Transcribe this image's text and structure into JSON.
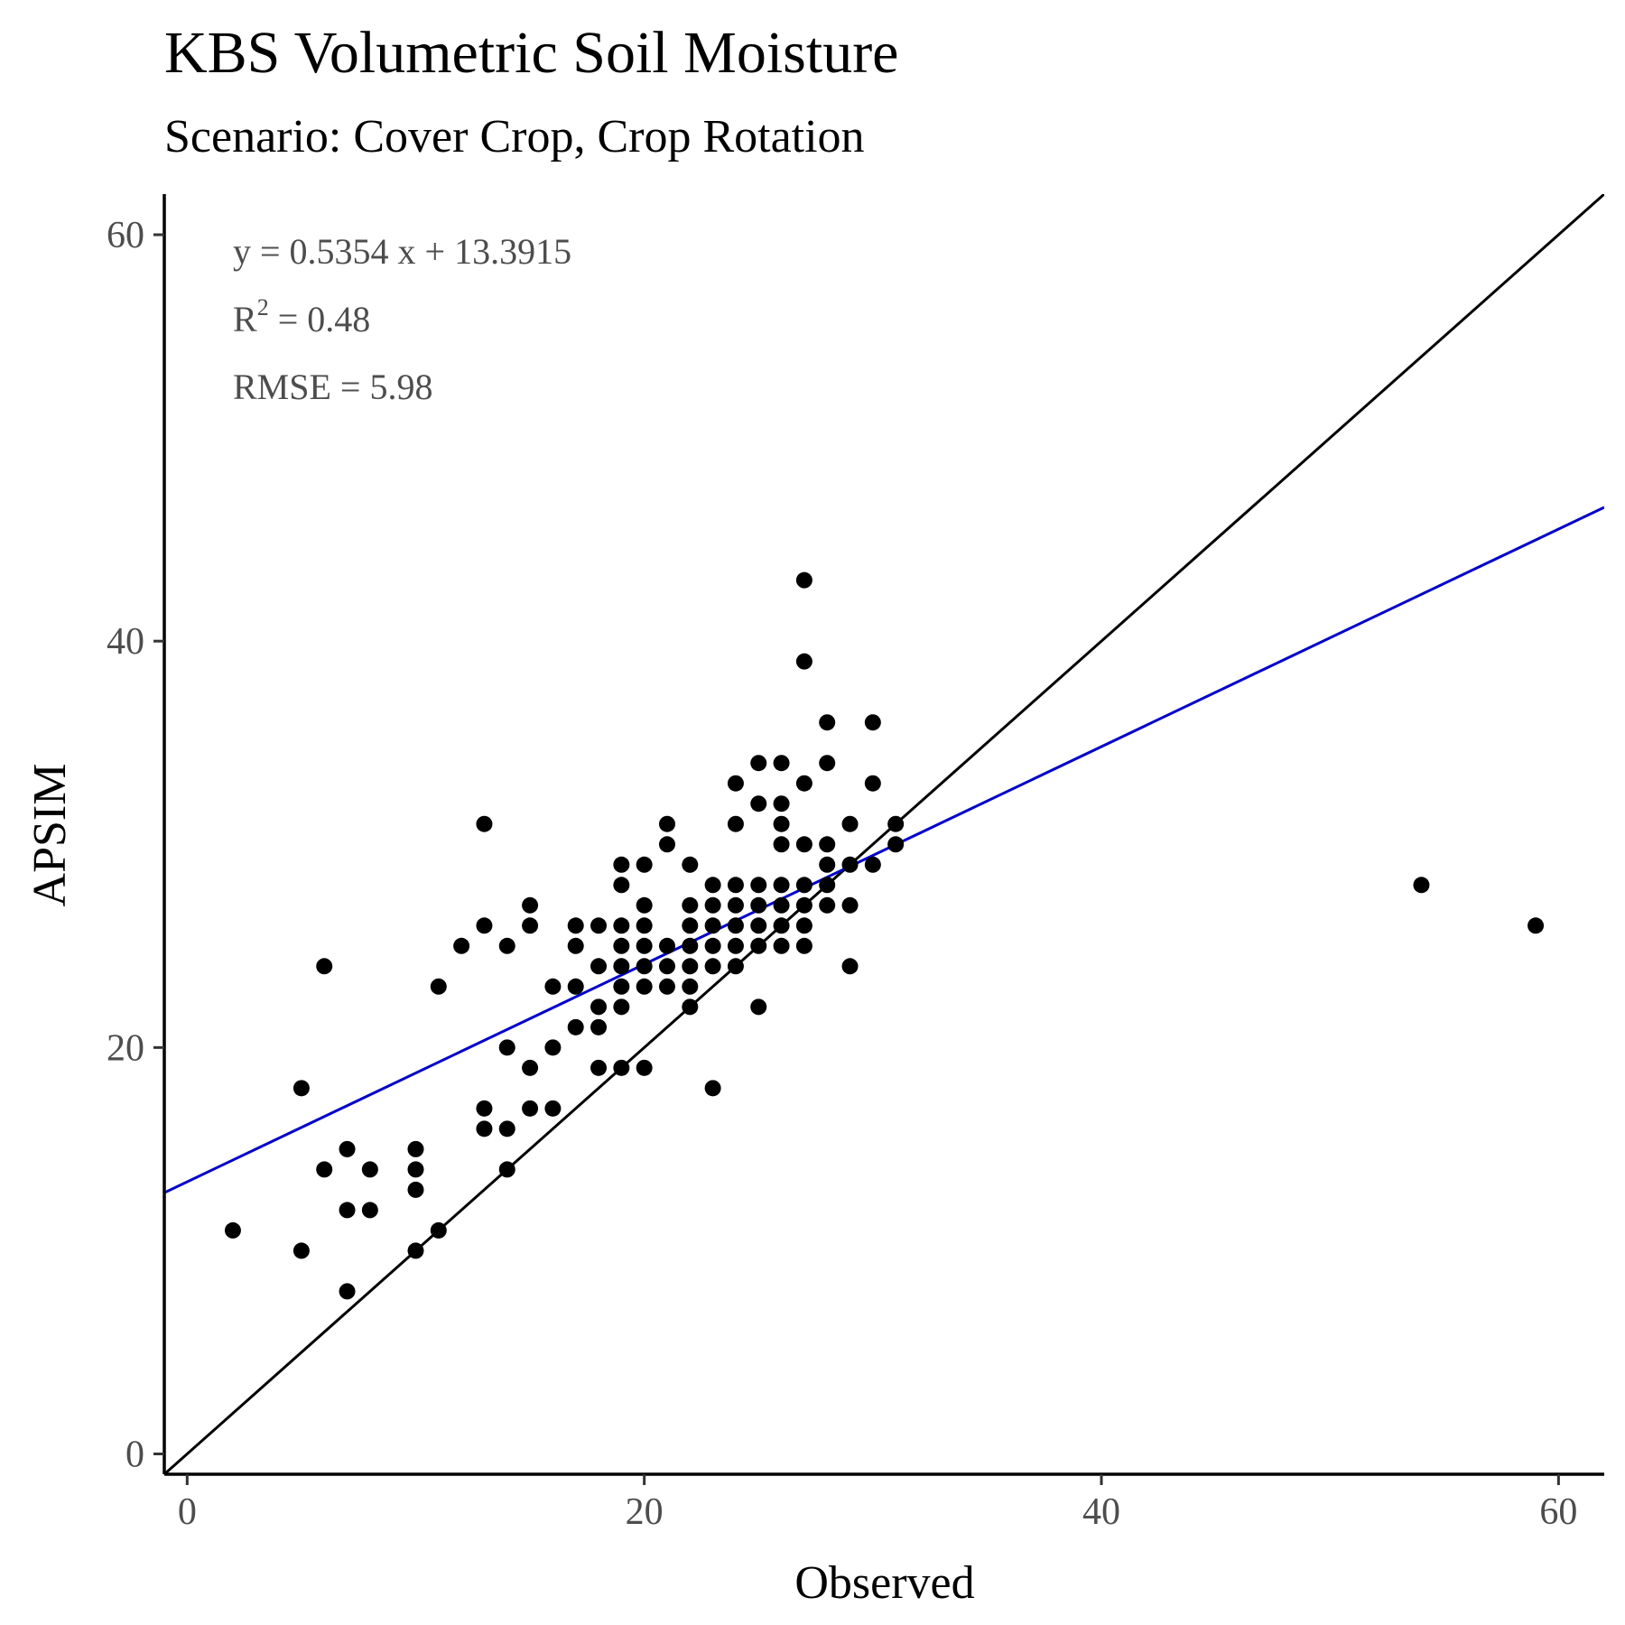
{
  "chart_data": {
    "type": "scatter",
    "title": "KBS Volumetric Soil Moisture",
    "subtitle": "Scenario: Cover Crop, Crop Rotation",
    "xlabel": "Observed",
    "ylabel": "APSIM",
    "xlim": [
      -1,
      62
    ],
    "ylim": [
      -1,
      62
    ],
    "xticks": [
      0,
      20,
      40,
      60
    ],
    "yticks": [
      0,
      20,
      40,
      60
    ],
    "grid": false,
    "annotations": {
      "equation": "y = 0.5354 x +  13.3915",
      "r2_label": "R",
      "r2_sup": "2",
      "r2_value": " = 0.48",
      "rmse": "RMSE = 5.98"
    },
    "lines": [
      {
        "kind": "1:1",
        "slope": 1,
        "intercept": 0,
        "color": "#000000"
      },
      {
        "kind": "regression",
        "slope": 0.5354,
        "intercept": 13.3915,
        "color": "#0000cc"
      }
    ],
    "points": [
      [
        2,
        11
      ],
      [
        5,
        18
      ],
      [
        5,
        10
      ],
      [
        6,
        24
      ],
      [
        6,
        14
      ],
      [
        7,
        15
      ],
      [
        7,
        12
      ],
      [
        7,
        8
      ],
      [
        8,
        14
      ],
      [
        8,
        12
      ],
      [
        10,
        15
      ],
      [
        10,
        14
      ],
      [
        10,
        13
      ],
      [
        10,
        10
      ],
      [
        11,
        23
      ],
      [
        11,
        11
      ],
      [
        12,
        25
      ],
      [
        13,
        31
      ],
      [
        13,
        26
      ],
      [
        13,
        17
      ],
      [
        13,
        16
      ],
      [
        14,
        25
      ],
      [
        14,
        20
      ],
      [
        14,
        16
      ],
      [
        14,
        14
      ],
      [
        15,
        27
      ],
      [
        15,
        26
      ],
      [
        15,
        19
      ],
      [
        15,
        17
      ],
      [
        16,
        23
      ],
      [
        16,
        20
      ],
      [
        16,
        17
      ],
      [
        17,
        26
      ],
      [
        17,
        25
      ],
      [
        17,
        23
      ],
      [
        17,
        21
      ],
      [
        18,
        26
      ],
      [
        18,
        24
      ],
      [
        18,
        22
      ],
      [
        18,
        21
      ],
      [
        18,
        19
      ],
      [
        19,
        29
      ],
      [
        19,
        28
      ],
      [
        19,
        26
      ],
      [
        19,
        25
      ],
      [
        19,
        24
      ],
      [
        19,
        23
      ],
      [
        19,
        22
      ],
      [
        19,
        19
      ],
      [
        20,
        29
      ],
      [
        20,
        27
      ],
      [
        20,
        26
      ],
      [
        20,
        25
      ],
      [
        20,
        24
      ],
      [
        20,
        23
      ],
      [
        20,
        19
      ],
      [
        21,
        31
      ],
      [
        21,
        30
      ],
      [
        21,
        25
      ],
      [
        21,
        24
      ],
      [
        21,
        23
      ],
      [
        22,
        29
      ],
      [
        22,
        27
      ],
      [
        22,
        26
      ],
      [
        22,
        25
      ],
      [
        22,
        24
      ],
      [
        22,
        23
      ],
      [
        22,
        22
      ],
      [
        23,
        28
      ],
      [
        23,
        27
      ],
      [
        23,
        26
      ],
      [
        23,
        25
      ],
      [
        23,
        24
      ],
      [
        23,
        18
      ],
      [
        24,
        33
      ],
      [
        24,
        31
      ],
      [
        24,
        28
      ],
      [
        24,
        27
      ],
      [
        24,
        26
      ],
      [
        24,
        25
      ],
      [
        24,
        24
      ],
      [
        25,
        34
      ],
      [
        25,
        32
      ],
      [
        25,
        28
      ],
      [
        25,
        27
      ],
      [
        25,
        26
      ],
      [
        25,
        25
      ],
      [
        25,
        22
      ],
      [
        26,
        34
      ],
      [
        26,
        32
      ],
      [
        26,
        31
      ],
      [
        26,
        30
      ],
      [
        26,
        28
      ],
      [
        26,
        27
      ],
      [
        26,
        26
      ],
      [
        26,
        25
      ],
      [
        27,
        43
      ],
      [
        27,
        39
      ],
      [
        27,
        33
      ],
      [
        27,
        30
      ],
      [
        27,
        28
      ],
      [
        27,
        27
      ],
      [
        27,
        26
      ],
      [
        27,
        25
      ],
      [
        28,
        36
      ],
      [
        28,
        34
      ],
      [
        28,
        30
      ],
      [
        28,
        29
      ],
      [
        28,
        28
      ],
      [
        28,
        27
      ],
      [
        29,
        31
      ],
      [
        29,
        29
      ],
      [
        29,
        27
      ],
      [
        29,
        24
      ],
      [
        30,
        36
      ],
      [
        30,
        33
      ],
      [
        30,
        29
      ],
      [
        31,
        31
      ],
      [
        31,
        30
      ],
      [
        54,
        28
      ],
      [
        59,
        26
      ]
    ]
  }
}
